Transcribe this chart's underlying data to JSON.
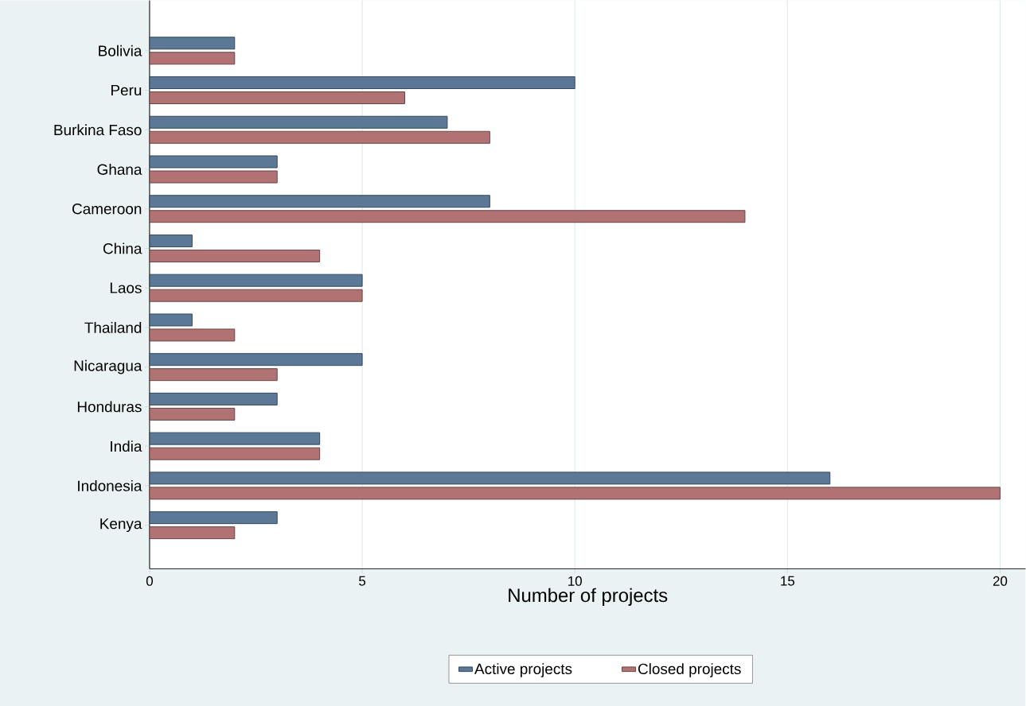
{
  "chart_data": {
    "type": "bar",
    "orientation": "horizontal",
    "xlabel": "Number of projects",
    "categories": [
      "Bolivia",
      "Peru",
      "Burkina Faso",
      "Ghana",
      "Cameroon",
      "China",
      "Laos",
      "Thailand",
      "Nicaragua",
      "Honduras",
      "India",
      "Indonesia",
      "Kenya"
    ],
    "series": [
      {
        "name": "Active projects",
        "color": "#5b7896",
        "values": [
          2,
          10,
          7,
          3,
          8,
          1,
          5,
          1,
          5,
          3,
          4,
          16,
          3
        ]
      },
      {
        "name": "Closed projects",
        "color": "#b07272",
        "values": [
          2,
          6,
          8,
          3,
          14,
          4,
          5,
          2,
          3,
          2,
          4,
          20,
          2
        ]
      }
    ],
    "xlim": [
      0,
      20.6
    ],
    "xticks": [
      0,
      5,
      10,
      15,
      20
    ],
    "grid": "x",
    "legend": "bottom"
  }
}
